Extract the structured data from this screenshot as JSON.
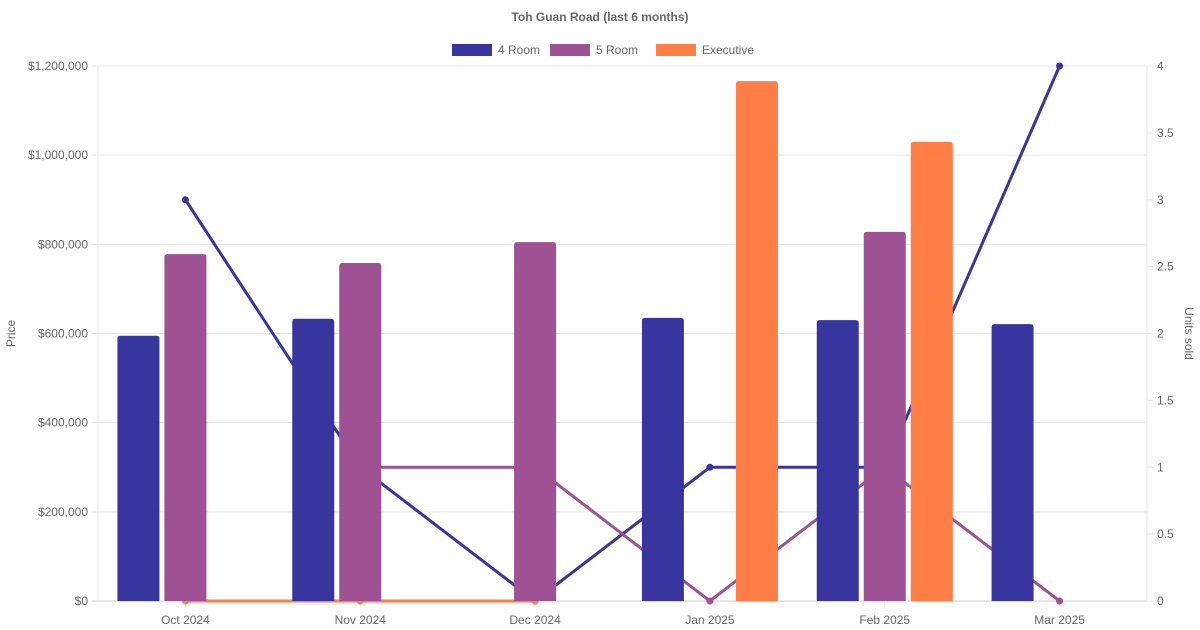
{
  "chart_data": {
    "type": "bar",
    "title": "Toh Guan Road (last 6 months)",
    "categories": [
      "Oct 2024",
      "Nov 2024",
      "Dec 2024",
      "Jan 2025",
      "Feb 2025",
      "Mar 2025"
    ],
    "ylabel": "Price",
    "y2label": "Units sold",
    "ylim": [
      0,
      1200000
    ],
    "y2lim": [
      0,
      4
    ],
    "yticks": [
      "$0",
      "$200,000",
      "$400,000",
      "$600,000",
      "$800,000",
      "$1,000,000",
      "$1,200,000"
    ],
    "y2ticks": [
      "0",
      "0.5",
      "1",
      "1.5",
      "2",
      "2.5",
      "3",
      "3.5",
      "4"
    ],
    "legend_position": "top",
    "grid": true,
    "series": [
      {
        "name": "4 Room",
        "color": "#39359f",
        "price": [
          595000,
          633000,
          null,
          635000,
          630000,
          621000
        ],
        "units": [
          3,
          1,
          0,
          1,
          1,
          4
        ]
      },
      {
        "name": "5 Room",
        "color": "#9e5193",
        "price": [
          778000,
          758000,
          805000,
          null,
          828000,
          null
        ],
        "units": [
          null,
          1,
          1,
          0,
          1,
          0
        ]
      },
      {
        "name": "Executive",
        "color": "#ff7e45",
        "price": [
          null,
          null,
          null,
          1166000,
          1030000,
          null
        ],
        "units": [
          0,
          0,
          0,
          null,
          null,
          null
        ]
      }
    ]
  }
}
